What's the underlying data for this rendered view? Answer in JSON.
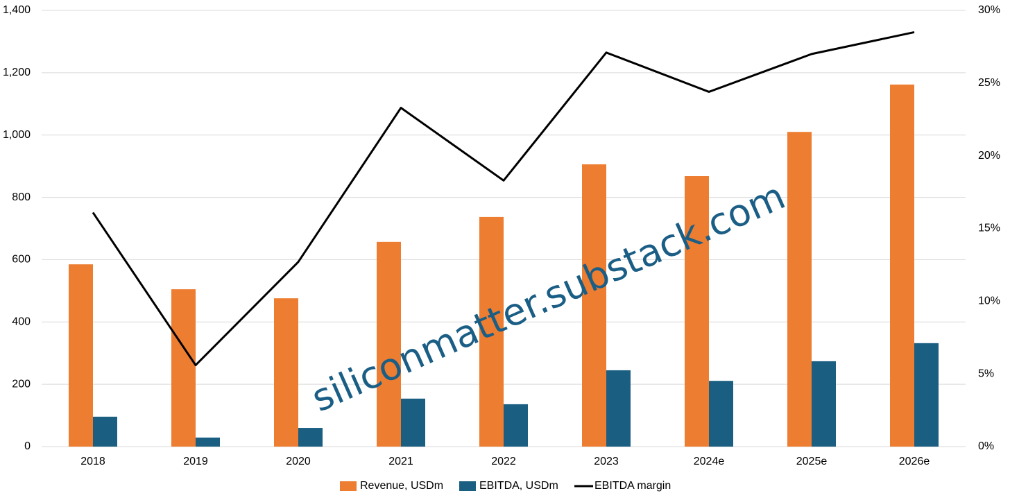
{
  "chart_data": {
    "type": "bar",
    "categories": [
      "2018",
      "2019",
      "2020",
      "2021",
      "2022",
      "2023",
      "2024e",
      "2025e",
      "2026e"
    ],
    "series": [
      {
        "name": "Revenue, USDm",
        "color": "#ed7d31",
        "type": "bar",
        "values": [
          585,
          505,
          476,
          657,
          737,
          906,
          868,
          1010,
          1162
        ]
      },
      {
        "name": "EBITDA, USDm",
        "color": "#1a5e82",
        "type": "bar",
        "values": [
          96,
          29,
          60,
          154,
          136,
          245,
          211,
          274,
          332
        ]
      },
      {
        "name": "EBITDA margin",
        "color": "#000000",
        "type": "line",
        "axis": "y2",
        "values": [
          16.1,
          5.6,
          12.7,
          23.3,
          18.3,
          27.1,
          24.4,
          27.0,
          28.5
        ]
      }
    ],
    "ylim": [
      0,
      1400
    ],
    "yticks": [
      0,
      200,
      400,
      600,
      800,
      {
        "value": 1000,
        "label": "1,000"
      },
      {
        "value": 1200,
        "label": "1,200"
      },
      {
        "value": 1400,
        "label": "1,400"
      }
    ],
    "y2lim": [
      0,
      30
    ],
    "y2ticks": [
      {
        "value": 0,
        "label": "0%"
      },
      {
        "value": 5,
        "label": "5%"
      },
      {
        "value": 10,
        "label": "10%"
      },
      {
        "value": 15,
        "label": "15%"
      },
      {
        "value": 20,
        "label": "20%"
      },
      {
        "value": 25,
        "label": "25%"
      },
      {
        "value": 30,
        "label": "30%"
      }
    ],
    "grid": true,
    "legend": "bottom",
    "watermark": "siliconmatter.substack.com"
  }
}
